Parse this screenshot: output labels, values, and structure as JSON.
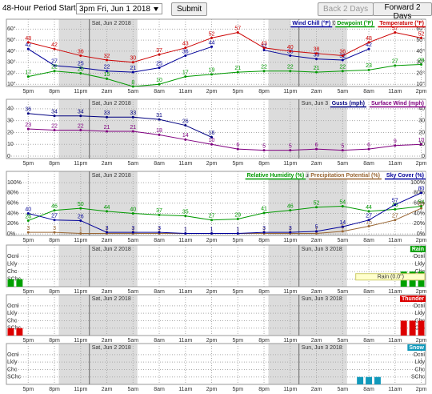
{
  "controls": {
    "period_label": "48-Hour Period Starting:",
    "period_value": "3pm Fri, Jun 1 2018",
    "submit": "Submit",
    "back": "Back 2 Days",
    "forward": "Forward 2 Days"
  },
  "time_axis": {
    "xlim": [
      -0.5,
      47.5
    ],
    "xticks": [
      {
        "value": 2,
        "label": "5pm"
      },
      {
        "value": 5,
        "label": "8pm"
      },
      {
        "value": 8,
        "label": "11pm"
      },
      {
        "value": 11,
        "label": "2am"
      },
      {
        "value": 14,
        "label": "5am"
      },
      {
        "value": 17,
        "label": "8am"
      },
      {
        "value": 20,
        "label": "11am"
      },
      {
        "value": 23,
        "label": "2pm"
      },
      {
        "value": 26,
        "label": "5pm"
      },
      {
        "value": 29,
        "label": "8pm"
      },
      {
        "value": 32,
        "label": "11pm"
      },
      {
        "value": 35,
        "label": "2am"
      },
      {
        "value": 38,
        "label": "5am"
      },
      {
        "value": 41,
        "label": "8am"
      },
      {
        "value": 44,
        "label": "11am"
      },
      {
        "value": 47,
        "label": "2pm"
      }
    ],
    "days": [
      {
        "label": "Sat, Jun 2 2018",
        "x": 9
      },
      {
        "label": "Sun, Jun 3 2018",
        "x": 33
      }
    ],
    "night": [
      [
        5.5,
        14.5
      ],
      [
        29.5,
        38.5
      ]
    ]
  },
  "chart_data": [
    {
      "type": "line",
      "ylim": [
        8,
        69
      ],
      "yticks": [
        {
          "value": 60,
          "label": "60°"
        },
        {
          "value": 50,
          "label": "50°"
        },
        {
          "value": 40,
          "label": "40°"
        },
        {
          "value": 30,
          "label": "30°"
        },
        {
          "value": 20,
          "label": "20°"
        },
        {
          "value": 10,
          "label": "10°"
        }
      ],
      "x": [
        2,
        5,
        8,
        11,
        14,
        17,
        20,
        23,
        26,
        29,
        32,
        35,
        38,
        41,
        44,
        47
      ],
      "series": [
        {
          "name": "Wind Chill (°F)",
          "color": "#000099",
          "values": [
            42,
            27,
            25,
            22,
            21,
            25,
            36,
            44,
            null,
            41,
            36,
            33,
            32,
            42,
            null,
            null
          ]
        },
        {
          "name": "Dewpoint (°F)",
          "color": "#009900",
          "values": [
            17,
            22,
            20,
            15,
            8,
            10,
            17,
            19,
            21,
            22,
            22,
            21,
            22,
            23,
            27,
            28
          ]
        },
        {
          "name": "Temperature (°F)",
          "color": "#cc0000",
          "values": [
            48,
            42,
            36,
            32,
            30,
            37,
            43,
            52,
            57,
            43,
            40,
            38,
            36,
            48,
            57,
            52
          ]
        }
      ]
    },
    {
      "type": "line",
      "ylim": [
        -2,
        48
      ],
      "yticks": [
        40,
        30,
        20,
        10,
        0
      ],
      "x": [
        2,
        5,
        8,
        11,
        14,
        17,
        20,
        23,
        26,
        29,
        32,
        35,
        38,
        41,
        44,
        47
      ],
      "series": [
        {
          "name": "Gusts (mph)",
          "color": "#000080",
          "values": [
            36,
            34,
            34,
            33,
            33,
            31,
            26,
            16,
            null,
            null,
            null,
            null,
            null,
            null,
            null,
            null
          ]
        },
        {
          "name": "Surface Wind (mph)",
          "color": "#800080",
          "values": [
            23,
            22,
            22,
            21,
            21,
            18,
            14,
            10,
            6,
            5,
            5,
            6,
            5,
            6,
            9,
            10
          ]
        }
      ]
    },
    {
      "type": "line",
      "ylim": [
        -3,
        122
      ],
      "yticks": [
        {
          "value": 100,
          "label": "100%"
        },
        {
          "value": 80,
          "label": "80%"
        },
        {
          "value": 60,
          "label": "60%"
        },
        {
          "value": 40,
          "label": "40%"
        },
        {
          "value": 20,
          "label": "20%"
        },
        {
          "value": 0,
          "label": "0%"
        }
      ],
      "x": [
        2,
        5,
        8,
        11,
        14,
        17,
        20,
        23,
        26,
        29,
        32,
        35,
        38,
        41,
        44,
        47
      ],
      "series": [
        {
          "name": "Relative Humidity (%)",
          "color": "#009900",
          "values": [
            26,
            46,
            50,
            44,
            40,
            37,
            35,
            27,
            29,
            41,
            46,
            52,
            54,
            44,
            48,
            54
          ]
        },
        {
          "name": "Precipitation Potential (%)",
          "color": "#996633",
          "values": [
            3,
            3,
            1,
            1,
            1,
            1,
            1,
            1,
            1,
            1,
            1,
            1,
            5,
            15,
            27,
            50
          ]
        },
        {
          "name": "Sky Cover (%)",
          "color": "#000099",
          "values": [
            40,
            27,
            26,
            3,
            3,
            3,
            1,
            1,
            1,
            3,
            3,
            5,
            14,
            27,
            57,
            80
          ]
        }
      ]
    },
    {
      "type": "bar",
      "ylim": [
        0,
        5.5
      ],
      "yticks": [
        {
          "value": 4,
          "label": "Ocnl"
        },
        {
          "value": 3,
          "label": "Lkly"
        },
        {
          "value": 2,
          "label": "Chc"
        },
        {
          "value": 1,
          "label": "SChc"
        }
      ],
      "annotation": "Rain (0.0\")",
      "series": [
        {
          "name": "Rain",
          "color": "#00a000",
          "x": [
            0,
            1,
            45,
            46,
            47
          ],
          "values": [
            1,
            1,
            2,
            2,
            2
          ]
        }
      ]
    },
    {
      "type": "bar",
      "ylim": [
        0,
        5.5
      ],
      "yticks": [
        {
          "value": 4,
          "label": "Ocnl"
        },
        {
          "value": 3,
          "label": "Lkly"
        },
        {
          "value": 2,
          "label": "Chc"
        },
        {
          "value": 1,
          "label": "SChc"
        }
      ],
      "series": [
        {
          "name": "Thunder",
          "color": "#dd0000",
          "x": [
            0,
            1,
            45,
            46,
            47
          ],
          "values": [
            1,
            1,
            2,
            2,
            2
          ]
        }
      ]
    },
    {
      "type": "bar",
      "ylim": [
        0,
        5.5
      ],
      "yticks": [
        {
          "value": 4,
          "label": "Ocnl"
        },
        {
          "value": 3,
          "label": "Lkly"
        },
        {
          "value": 2,
          "label": "Chc"
        },
        {
          "value": 1,
          "label": "SChc"
        }
      ],
      "series": [
        {
          "name": "Snow",
          "color": "#1199bb",
          "x": [
            40,
            41,
            42
          ],
          "values": [
            1,
            1,
            1
          ]
        }
      ]
    }
  ]
}
